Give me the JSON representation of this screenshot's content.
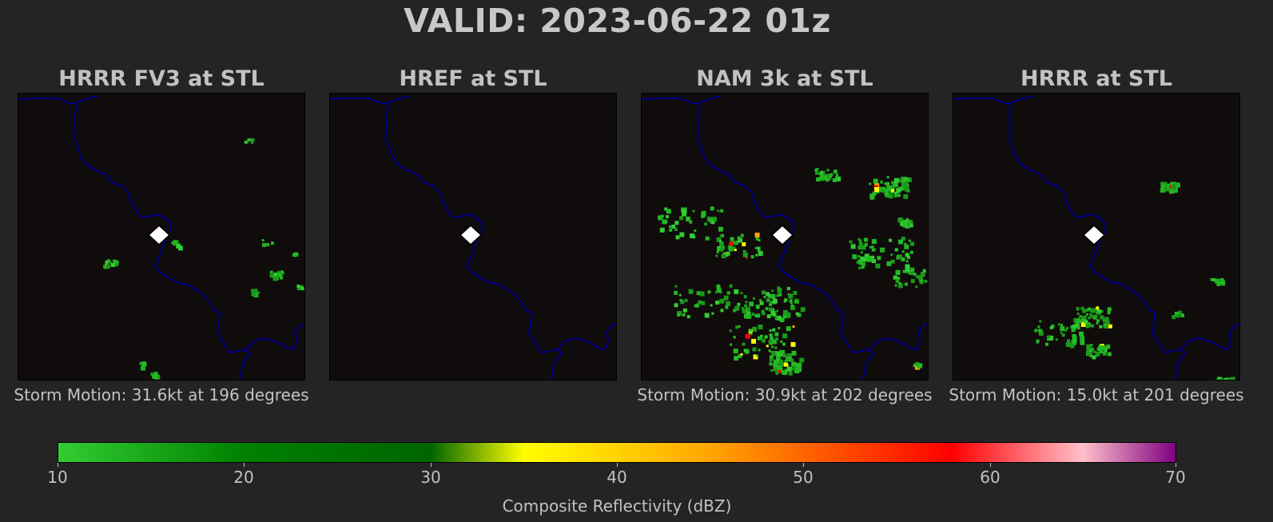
{
  "title": "VALID: 2023-06-22 01z",
  "colors": {
    "background": "#242424",
    "map_background": "#100c0c",
    "river": "#00008b",
    "station_marker": "#ffffff",
    "reflectivity_colormap": [
      "#32cd32",
      "#008000",
      "#006400",
      "#ffff00",
      "#ffa500",
      "#ff0000",
      "#ffc0cb",
      "#800080"
    ]
  },
  "panels": [
    {
      "title": "HRRR FV3 at STL",
      "storm_motion": "Storm Motion: 31.6kt at 196 degrees",
      "marker_icon": "diamond-icon"
    },
    {
      "title": "HREF at STL",
      "storm_motion": "",
      "marker_icon": "diamond-icon"
    },
    {
      "title": "NAM 3k at STL",
      "storm_motion": "Storm Motion: 30.9kt at 202 degrees",
      "marker_icon": "diamond-icon"
    },
    {
      "title": "HRRR at STL",
      "storm_motion": "Storm Motion: 15.0kt at 201 degrees",
      "marker_icon": "diamond-icon"
    }
  ],
  "colorbar": {
    "label": "Composite Reflectivity (dBZ)",
    "min": 10,
    "max": 70,
    "ticks": [
      "10",
      "20",
      "30",
      "40",
      "50",
      "60",
      "70"
    ]
  }
}
